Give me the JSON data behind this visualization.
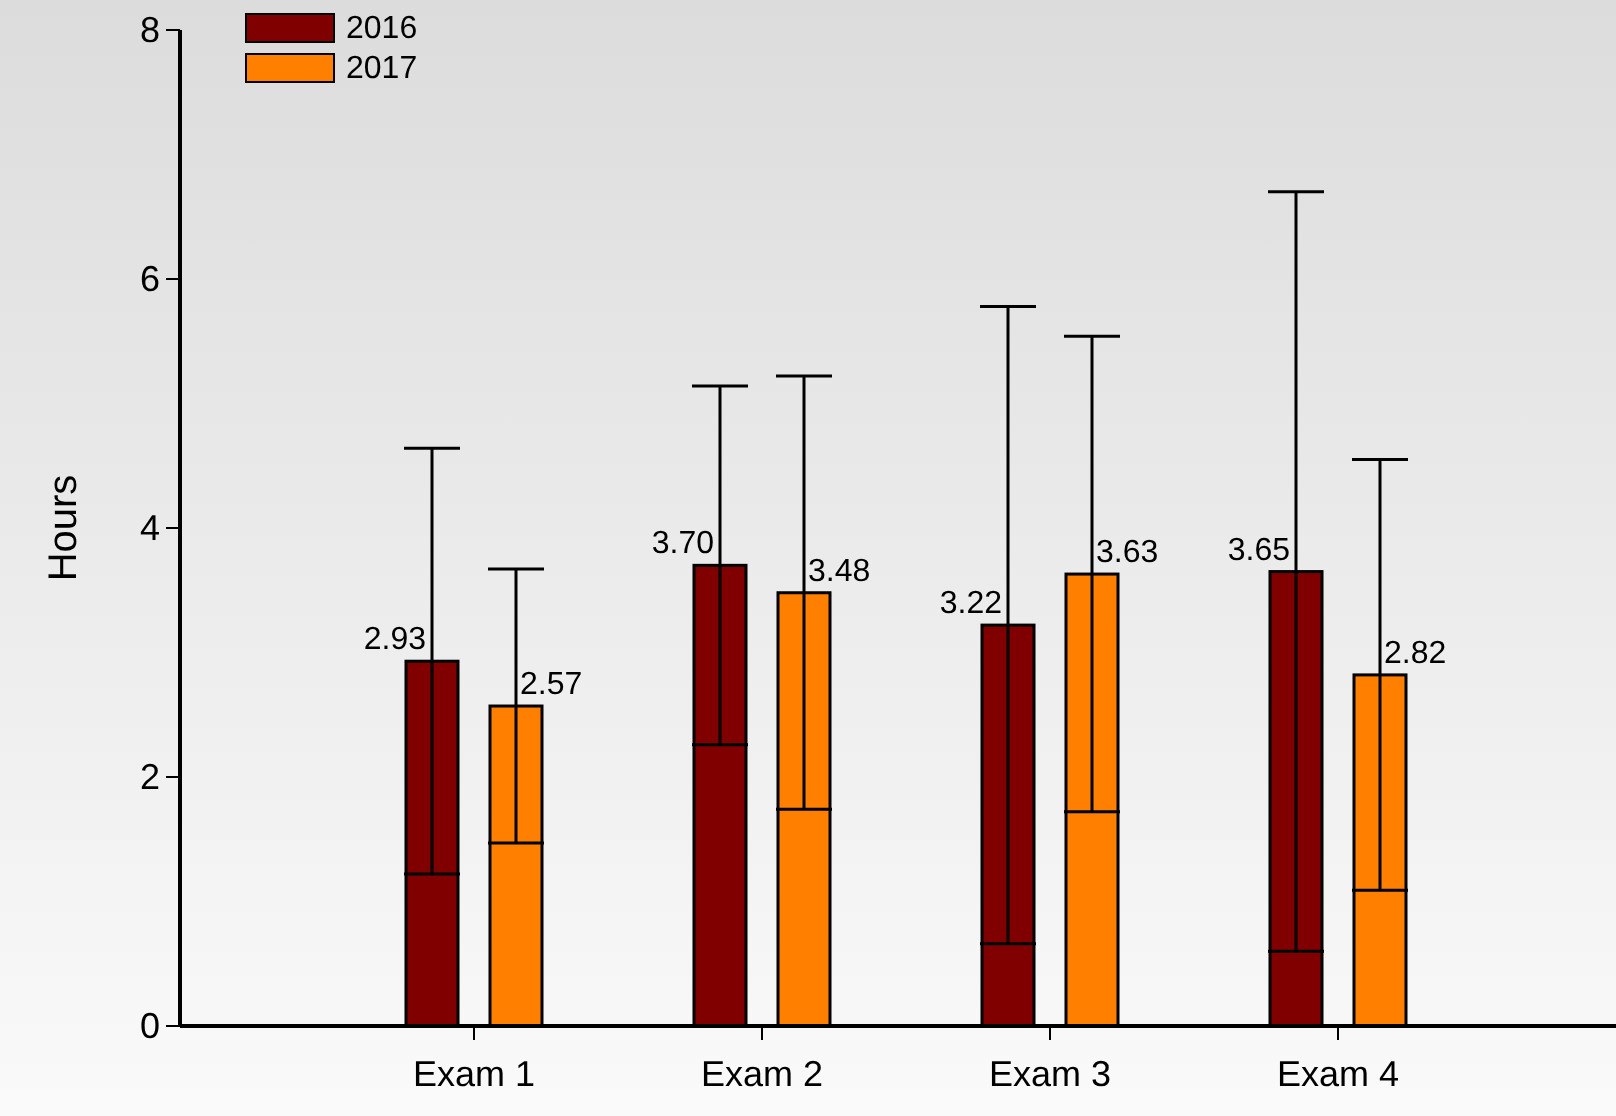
{
  "chart_data": {
    "type": "bar",
    "ylabel": "Hours",
    "categories": [
      "Exam 1",
      "Exam 2",
      "Exam 3",
      "Exam 4"
    ],
    "series": [
      {
        "name": "2016",
        "color": "#800000",
        "values": [
          2.93,
          3.7,
          3.22,
          3.65
        ],
        "errors": [
          1.71,
          1.44,
          2.56,
          3.05
        ],
        "value_labels": [
          "2.93",
          "3.70",
          "3.22",
          "3.65"
        ]
      },
      {
        "name": "2017",
        "color": "#ff8000",
        "values": [
          2.57,
          3.48,
          3.63,
          2.82
        ],
        "errors": [
          1.1,
          1.74,
          1.91,
          1.73
        ],
        "value_labels": [
          "2.57",
          "3.48",
          "3.63",
          "2.82"
        ]
      }
    ],
    "ylim": [
      0,
      8
    ],
    "yticks": [
      0,
      2,
      4,
      6,
      8
    ],
    "legend": "top left",
    "grid": false
  }
}
